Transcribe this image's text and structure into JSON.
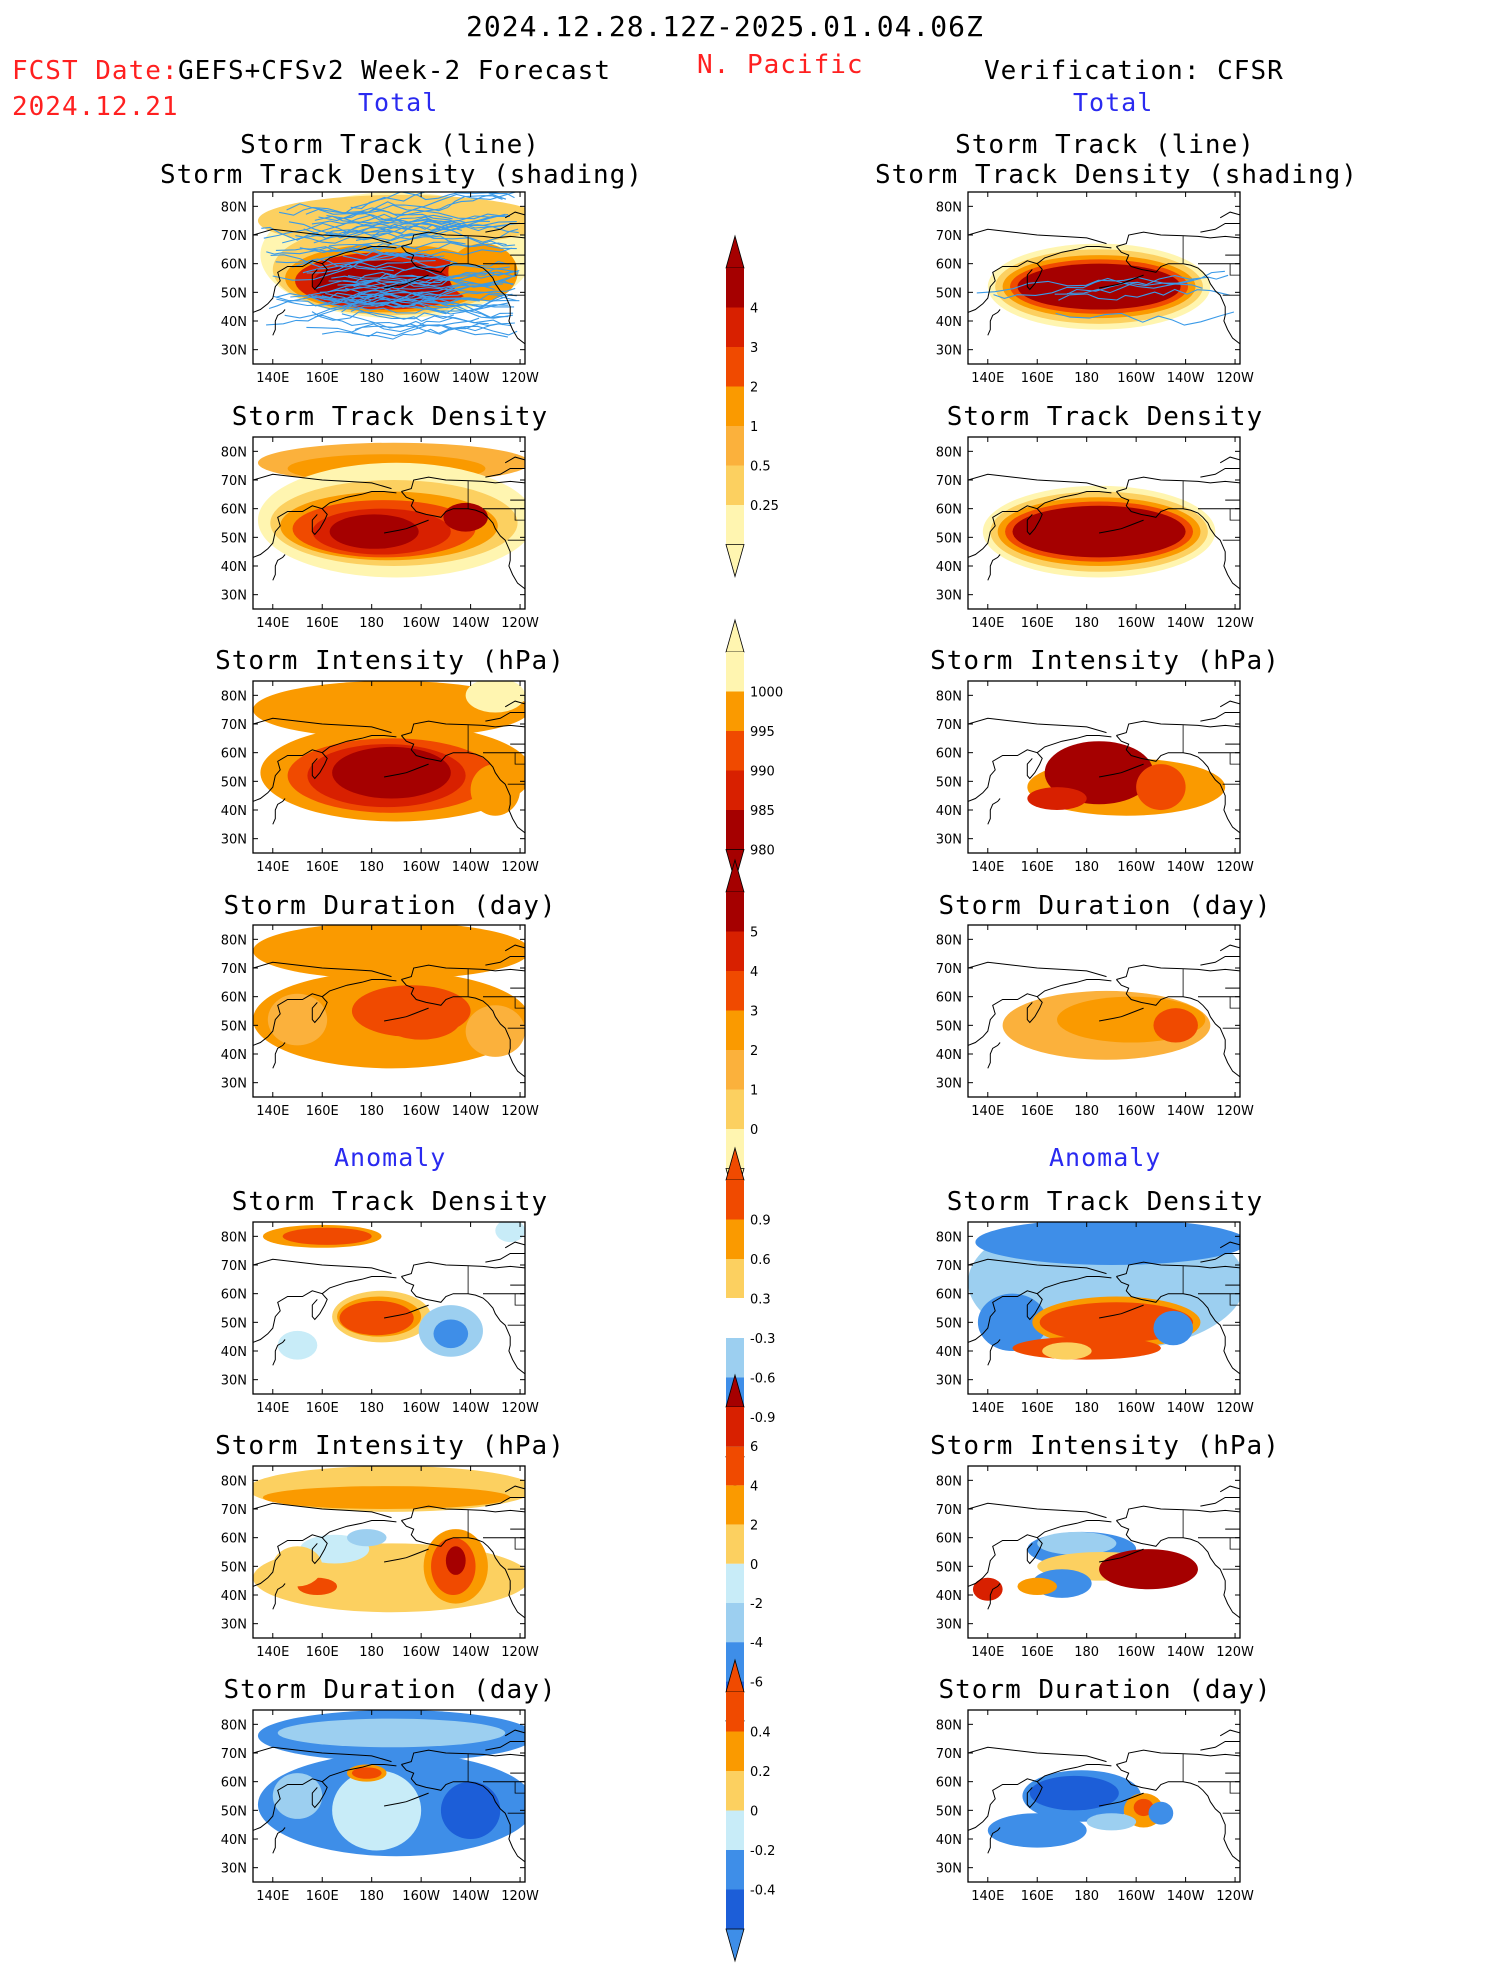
{
  "header": {
    "title": "2024.12.28.12Z-2025.01.04.06Z",
    "fcst_label": "FCST Date:",
    "fcst_model": "GEFS+CFSv2 Week-2 Forecast",
    "fcst_date": "2024.12.21",
    "region": "N. Pacific",
    "verification": "Verification: CFSR",
    "left_total": "Total",
    "right_total": "Total",
    "left_anomaly": "Anomaly",
    "right_anomaly": "Anomaly"
  },
  "panels": {
    "track_line_1": "Storm Track (line)",
    "track_line_2": "Storm Track Density (shading)",
    "density": "Storm Track Density",
    "intensity": "Storm Intensity (hPa)",
    "duration": "Storm Duration (day)"
  },
  "axes": {
    "lat_labels": [
      "80N",
      "70N",
      "60N",
      "50N",
      "40N",
      "30N"
    ],
    "lon_labels": [
      "140E",
      "160E",
      "180",
      "160W",
      "140W",
      "120W"
    ]
  },
  "colorbars": {
    "density_total": [
      "4",
      "3",
      "2",
      "1",
      "0.5",
      "0.25"
    ],
    "intensity_total": [
      "1000",
      "995",
      "990",
      "985",
      "980"
    ],
    "duration_total": [
      "5",
      "4",
      "3",
      "2",
      "1",
      "0"
    ],
    "density_anom": [
      "0.9",
      "0.6",
      "0.3",
      "-0.3",
      "-0.6",
      "-0.9"
    ],
    "intensity_anom": [
      "6",
      "4",
      "2",
      "0",
      "-2",
      "-4",
      "-6"
    ],
    "duration_anom": [
      "0.4",
      "0.2",
      "0",
      "-0.2",
      "-0.4"
    ]
  },
  "colors": {
    "dark_red": "#a50000",
    "red": "#d82000",
    "red_orange": "#f04a00",
    "orange": "#fa9a00",
    "light_orange": "#fbb13c",
    "yellow": "#fcd060",
    "pale_yellow": "#fff5b0",
    "track_blue": "#3a9ae8",
    "blue_dark": "#1c5ed8",
    "blue": "#3e8ee8",
    "blue_light": "#9ccff0",
    "blue_pale": "#c8ecf8"
  }
}
